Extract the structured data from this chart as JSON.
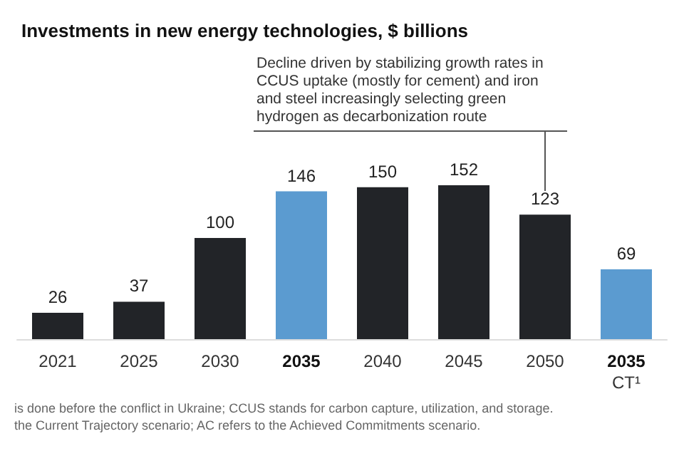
{
  "chart_data": {
    "type": "bar",
    "title": "Investments in new energy technologies, $ billions",
    "categories": [
      "2021",
      "2025",
      "2030",
      "2035",
      "2040",
      "2045",
      "2050",
      "2035\nCT¹"
    ],
    "values": [
      26,
      37,
      100,
      146,
      150,
      152,
      123,
      69
    ],
    "colors": [
      "#222428",
      "#222428",
      "#222428",
      "#5b9bd0",
      "#222428",
      "#222428",
      "#222428",
      "#5b9bd0"
    ],
    "data_labels": true,
    "annotations": [
      "Decline driven by stabilizing growth rates in CCUS uptake (mostly for cement) and iron and steel increasingly selecting green hydrogen as decarbonization route",
      "is done before the conflict in Ukraine; CCUS stands for carbon capture, utilization, and storage.",
      "the Current Trajectory scenario; AC refers to the Achieved Commitments scenario."
    ]
  }
}
